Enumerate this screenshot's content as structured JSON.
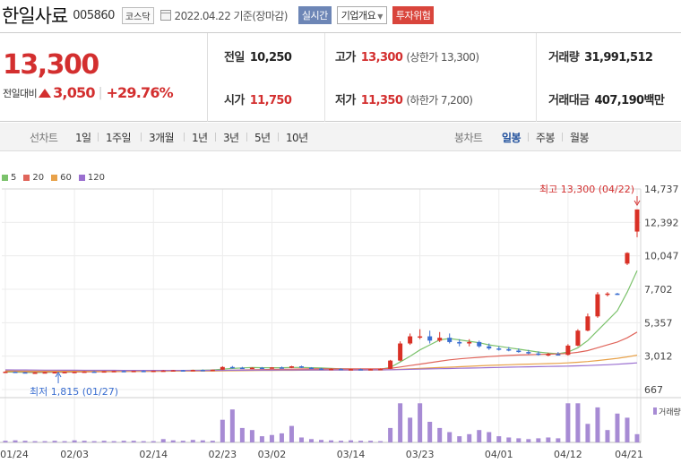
{
  "header": {
    "stock_name": "한일사료",
    "stock_code": "005860",
    "market": "코스닥",
    "base_date": "2022.04.22 기준(장마감)",
    "realtime_label": "실시간",
    "overview_label": "기업개요",
    "risk_label": "투자위험"
  },
  "quote": {
    "price": "13,300",
    "change_label": "전일대비",
    "change_amount": "3,050",
    "change_rate": "+29.76%",
    "prev_close": {
      "label": "전일",
      "value": "10,250"
    },
    "open": {
      "label": "시가",
      "value": "11,750"
    },
    "high": {
      "label": "고가",
      "value": "13,300",
      "limit": "(상한가 13,300)"
    },
    "low": {
      "label": "저가",
      "value": "11,350",
      "limit": "(하한가 7,200)"
    },
    "volume": {
      "label": "거래량",
      "value": "31,991,512"
    },
    "amount": {
      "label": "거래대금",
      "value": "407,190",
      "unit": "백만"
    }
  },
  "period_tabs": {
    "label": "선차트",
    "items": [
      "1일",
      "1주일",
      "3개월",
      "1년",
      "3년",
      "5년",
      "10년"
    ]
  },
  "candle_tabs": {
    "label": "봉차트",
    "items": [
      "일봉",
      "주봉",
      "월봉"
    ],
    "active": "일봉"
  },
  "icons": {
    "up": "up-triangle-icon",
    "calendar": "calendar-icon",
    "caret": "caret-down-icon",
    "arrow": "down-arrow-icon"
  },
  "chart_data": {
    "type": "candlestick",
    "legend": [
      {
        "name": "5",
        "color": "#7bc26b"
      },
      {
        "name": "20",
        "color": "#e0655b"
      },
      {
        "name": "60",
        "color": "#e8a24a"
      },
      {
        "name": "120",
        "color": "#9a6fd0"
      }
    ],
    "y_ticks": [
      "14,737",
      "12,392",
      "10,047",
      "7,702",
      "5,357",
      "3,012",
      "667"
    ],
    "y_tick_values": [
      14737,
      12392,
      10047,
      7702,
      5357,
      3012,
      667
    ],
    "x_ticks": [
      "01/24",
      "02/03",
      "02/14",
      "02/23",
      "03/02",
      "03/14",
      "03/23",
      "04/01",
      "04/12",
      "04/21"
    ],
    "x_tick_index": [
      0,
      7,
      15,
      22,
      27,
      35,
      42,
      50,
      57,
      64
    ],
    "high_note": "최고 13,300 (04/22)",
    "low_note": "최저 1,815 (01/27)",
    "volume_label": "거래량",
    "up_color": "#d93025",
    "down_color": "#3b6fd1",
    "volume_color": "#a78bd4",
    "candles": [
      [
        1900,
        1950,
        1880,
        1920
      ],
      [
        1920,
        1940,
        1870,
        1880
      ],
      [
        1880,
        1900,
        1820,
        1840
      ],
      [
        1840,
        1880,
        1815,
        1860
      ],
      [
        1860,
        1900,
        1840,
        1880
      ],
      [
        1880,
        1910,
        1860,
        1890
      ],
      [
        1890,
        1920,
        1870,
        1900
      ],
      [
        1900,
        1930,
        1880,
        1910
      ],
      [
        1910,
        1950,
        1890,
        1930
      ],
      [
        1930,
        1960,
        1900,
        1920
      ],
      [
        1920,
        1960,
        1900,
        1950
      ],
      [
        1950,
        1990,
        1930,
        1970
      ],
      [
        1970,
        2000,
        1940,
        1960
      ],
      [
        1960,
        1990,
        1930,
        1980
      ],
      [
        1980,
        2010,
        1950,
        1970
      ],
      [
        1970,
        2000,
        1940,
        1990
      ],
      [
        1990,
        2030,
        1960,
        2000
      ],
      [
        2000,
        2040,
        1970,
        2020
      ],
      [
        2020,
        2050,
        1990,
        2010
      ],
      [
        2010,
        2060,
        1990,
        2040
      ],
      [
        2040,
        2080,
        2010,
        2030
      ],
      [
        2030,
        2070,
        2000,
        2060
      ],
      [
        2060,
        2300,
        2040,
        2250
      ],
      [
        2250,
        2320,
        2150,
        2200
      ],
      [
        2200,
        2260,
        2120,
        2160
      ],
      [
        2160,
        2230,
        2110,
        2200
      ],
      [
        2200,
        2250,
        2140,
        2180
      ],
      [
        2180,
        2240,
        2140,
        2220
      ],
      [
        2220,
        2280,
        2160,
        2190
      ],
      [
        2190,
        2330,
        2170,
        2300
      ],
      [
        2300,
        2340,
        2180,
        2200
      ],
      [
        2200,
        2240,
        2120,
        2140
      ],
      [
        2140,
        2180,
        2080,
        2100
      ],
      [
        2100,
        2150,
        2060,
        2120
      ],
      [
        2120,
        2160,
        2070,
        2080
      ],
      [
        2080,
        2120,
        2040,
        2100
      ],
      [
        2100,
        2140,
        2060,
        2080
      ],
      [
        2080,
        2120,
        2040,
        2100
      ],
      [
        2100,
        2150,
        2070,
        2120
      ],
      [
        2120,
        2750,
        2100,
        2700
      ],
      [
        2700,
        4050,
        2650,
        3900
      ],
      [
        3900,
        4600,
        3800,
        4400
      ],
      [
        4400,
        4900,
        4200,
        4400
      ],
      [
        4400,
        4800,
        3900,
        4100
      ],
      [
        4100,
        4700,
        4000,
        4300
      ],
      [
        4300,
        4600,
        3900,
        4000
      ],
      [
        4000,
        4200,
        3700,
        3900
      ],
      [
        3900,
        4200,
        3700,
        4000
      ],
      [
        4000,
        4100,
        3600,
        3700
      ],
      [
        3700,
        3900,
        3450,
        3550
      ],
      [
        3550,
        3700,
        3400,
        3500
      ],
      [
        3500,
        3650,
        3350,
        3400
      ],
      [
        3400,
        3550,
        3250,
        3300
      ],
      [
        3300,
        3450,
        3150,
        3200
      ],
      [
        3200,
        3350,
        3050,
        3100
      ],
      [
        3100,
        3250,
        3000,
        3150
      ],
      [
        3150,
        3300,
        3050,
        3100
      ],
      [
        3100,
        3850,
        3050,
        3750
      ],
      [
        3750,
        4900,
        3700,
        4800
      ],
      [
        4800,
        6000,
        4750,
        5800
      ],
      [
        5800,
        7500,
        5700,
        7350
      ],
      [
        7350,
        7500,
        7200,
        7400
      ],
      [
        7400,
        7450,
        7300,
        7350
      ],
      [
        9500,
        10300,
        9400,
        10250
      ],
      [
        11750,
        13300,
        11350,
        13300
      ]
    ],
    "volumes": [
      0.04,
      0.05,
      0.04,
      0.03,
      0.03,
      0.04,
      0.03,
      0.05,
      0.04,
      0.03,
      0.04,
      0.03,
      0.04,
      0.04,
      0.03,
      0.03,
      0.08,
      0.05,
      0.04,
      0.06,
      0.05,
      0.04,
      0.55,
      0.8,
      0.35,
      0.3,
      0.15,
      0.18,
      0.22,
      0.4,
      0.12,
      0.08,
      0.06,
      0.05,
      0.04,
      0.05,
      0.04,
      0.04,
      0.03,
      0.35,
      0.95,
      0.6,
      0.95,
      0.5,
      0.35,
      0.25,
      0.15,
      0.2,
      0.3,
      0.25,
      0.15,
      0.12,
      0.1,
      0.08,
      0.1,
      0.12,
      0.1,
      0.95,
      0.95,
      0.45,
      0.85,
      0.3,
      0.7,
      0.6,
      0.2
    ],
    "ma5": [
      1900,
      1890,
      1870,
      1860,
      1870,
      1880,
      1885,
      1900,
      1920,
      1930,
      1940,
      1950,
      1965,
      1970,
      1975,
      1980,
      1990,
      2000,
      2010,
      2020,
      2030,
      2040,
      2100,
      2150,
      2190,
      2210,
      2200,
      2200,
      2200,
      2220,
      2220,
      2200,
      2180,
      2150,
      2120,
      2110,
      2100,
      2095,
      2100,
      2220,
      2600,
      3000,
      3450,
      3800,
      4150,
      4250,
      4150,
      4050,
      3950,
      3800,
      3700,
      3600,
      3500,
      3400,
      3300,
      3230,
      3180,
      3300,
      3600,
      4100,
      4800,
      5500,
      6200,
      7500,
      9000
    ],
    "ma20": [
      1950,
      1940,
      1930,
      1920,
      1915,
      1910,
      1910,
      1910,
      1915,
      1920,
      1925,
      1930,
      1935,
      1940,
      1945,
      1950,
      1955,
      1960,
      1965,
      1970,
      1975,
      1980,
      2000,
      2020,
      2040,
      2060,
      2070,
      2080,
      2090,
      2100,
      2110,
      2115,
      2120,
      2120,
      2120,
      2120,
      2120,
      2115,
      2115,
      2150,
      2250,
      2350,
      2450,
      2550,
      2650,
      2750,
      2820,
      2880,
      2930,
      2980,
      3020,
      3060,
      3090,
      3110,
      3130,
      3150,
      3170,
      3200,
      3280,
      3400,
      3600,
      3800,
      4000,
      4300,
      4700
    ],
    "ma60": [
      1980,
      1975,
      1970,
      1968,
      1965,
      1962,
      1960,
      1958,
      1957,
      1956,
      1955,
      1955,
      1955,
      1956,
      1957,
      1958,
      1960,
      1962,
      1964,
      1966,
      1968,
      1970,
      1978,
      1985,
      1992,
      2000,
      2005,
      2010,
      2015,
      2020,
      2025,
      2030,
      2032,
      2034,
      2036,
      2038,
      2040,
      2042,
      2044,
      2060,
      2090,
      2120,
      2150,
      2180,
      2210,
      2240,
      2270,
      2300,
      2330,
      2360,
      2385,
      2410,
      2430,
      2450,
      2470,
      2490,
      2510,
      2540,
      2580,
      2630,
      2700,
      2780,
      2860,
      2960,
      3080
    ],
    "ma120": [
      2050,
      2045,
      2040,
      2036,
      2032,
      2028,
      2025,
      2022,
      2020,
      2018,
      2016,
      2015,
      2014,
      2013,
      2012,
      2012,
      2012,
      2012,
      2012,
      2013,
      2014,
      2015,
      2018,
      2021,
      2024,
      2027,
      2030,
      2032,
      2034,
      2036,
      2038,
      2040,
      2041,
      2042,
      2043,
      2044,
      2045,
      2046,
      2047,
      2055,
      2070,
      2085,
      2100,
      2115,
      2130,
      2145,
      2160,
      2175,
      2190,
      2205,
      2220,
      2235,
      2250,
      2262,
      2274,
      2286,
      2298,
      2312,
      2330,
      2352,
      2380,
      2410,
      2445,
      2490,
      2540
    ]
  }
}
